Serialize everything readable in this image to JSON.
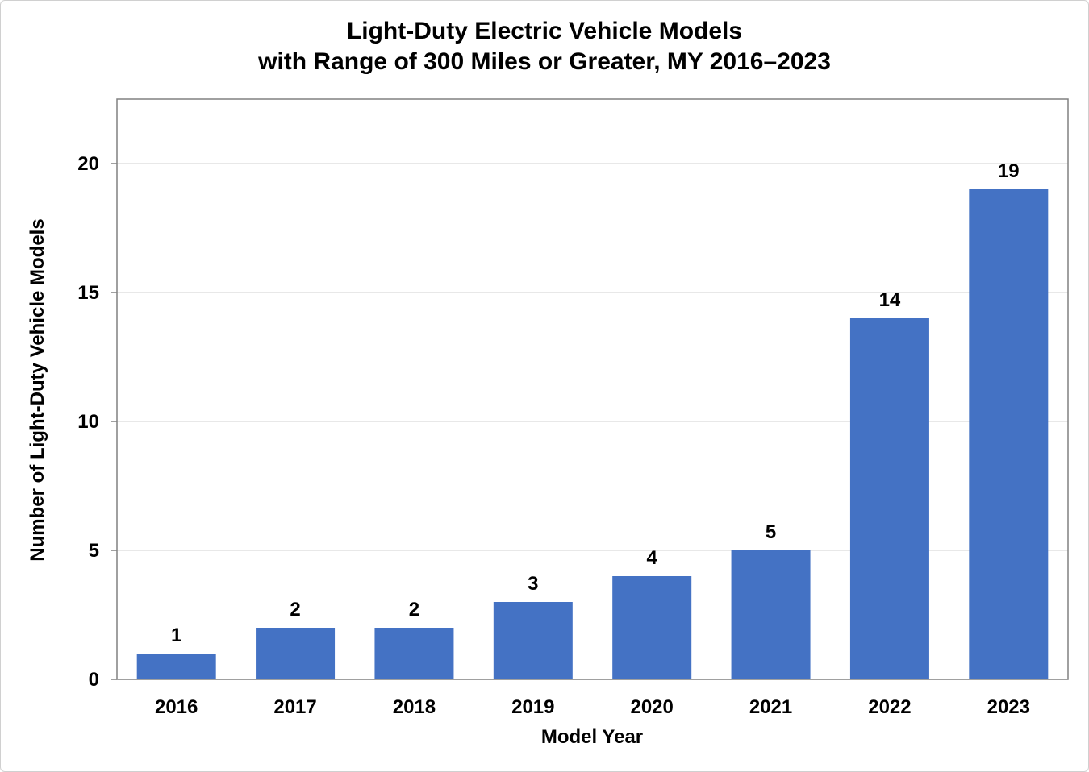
{
  "chart_data": {
    "type": "bar",
    "title": [
      "Light-Duty Electric Vehicle Models",
      "with Range of 300 Miles or Greater, MY 2016–2023"
    ],
    "xlabel": "Model Year",
    "ylabel": "Number of Light-Duty Vehicle Models",
    "categories": [
      "2016",
      "2017",
      "2018",
      "2019",
      "2020",
      "2021",
      "2022",
      "2023"
    ],
    "values": [
      1,
      2,
      2,
      3,
      4,
      5,
      14,
      19
    ],
    "data_labels": [
      "1",
      "2",
      "2",
      "3",
      "4",
      "5",
      "14",
      "19"
    ],
    "ylim": [
      0,
      22.5
    ],
    "yticks": [
      0,
      5,
      10,
      15,
      20
    ],
    "ytick_labels": [
      "0",
      "5",
      "10",
      "15",
      "20"
    ],
    "grid": true,
    "bar_color": "#4472c4",
    "grid_color": "#d9d9d9",
    "frame_color": "#808080"
  }
}
